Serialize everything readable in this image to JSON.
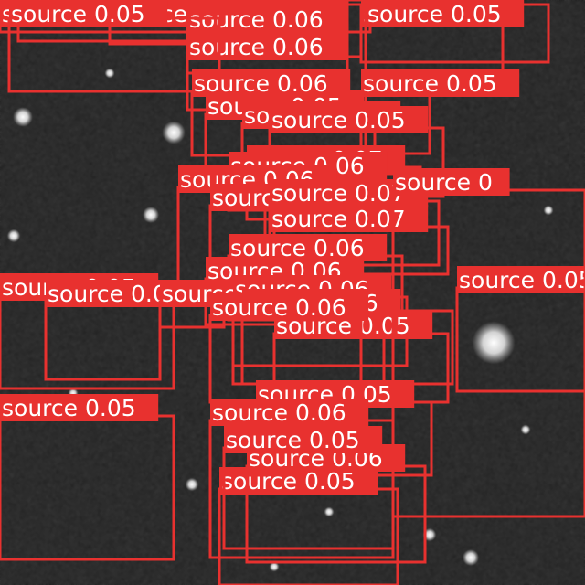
{
  "image": {
    "description_colors": {
      "box": "#e8312f",
      "label_text": "#ffffff",
      "background": "#1b1b1b"
    }
  },
  "detections": [
    {
      "label": "source",
      "score": "0.07"
    },
    {
      "label": "source",
      "score": "0.05"
    },
    {
      "label": "source",
      "score": "0.05"
    },
    {
      "label": "source",
      "score": "0.05"
    },
    {
      "label": "source",
      "score": "0.07"
    },
    {
      "label": "source",
      "score": "0.05"
    },
    {
      "label": "source",
      "score": "0.06"
    },
    {
      "label": "source",
      "score": "0.05"
    },
    {
      "label": "source",
      "score": "0.06"
    },
    {
      "label": "source",
      "score": "0.05"
    },
    {
      "label": "source",
      "score": "0.06"
    },
    {
      "label": "source",
      "score": "0.05"
    },
    {
      "label": "source",
      "score": "0.05"
    },
    {
      "label": "source",
      "score": "0.05"
    },
    {
      "label": "source",
      "score": "0.05"
    },
    {
      "label": "source",
      "score": "0.07"
    },
    {
      "label": "source",
      "score": "0.06"
    },
    {
      "label": "source",
      "score": "0.06"
    },
    {
      "label": "source",
      "score": "0.06"
    },
    {
      "label": "source",
      "score": "0.07"
    },
    {
      "label": "source",
      "score": "0.07"
    },
    {
      "label": "source",
      "score": "0.06"
    },
    {
      "label": "source",
      "score": "0.06"
    },
    {
      "label": "source",
      "score": "0.05"
    },
    {
      "label": "source",
      "score": "0.05"
    },
    {
      "label": "source",
      "score": "0.05"
    },
    {
      "label": "source",
      "score": "0.06"
    },
    {
      "label": "source",
      "score": "0.06"
    },
    {
      "label": "source",
      "score": "0.06"
    },
    {
      "label": "source",
      "score": "0.05"
    },
    {
      "label": "source",
      "score": "0.06"
    },
    {
      "label": "source",
      "score": "0.05"
    },
    {
      "label": "source",
      "score": "0.05"
    },
    {
      "label": "source",
      "score": "0"
    },
    {
      "label": "source",
      "score": "0.05"
    },
    {
      "label": "source",
      "score": "0.06"
    },
    {
      "label": "source",
      "score": "0.06"
    },
    {
      "label": "source",
      "score": "0.05"
    },
    {
      "label": "source",
      "score": "0.05"
    }
  ]
}
